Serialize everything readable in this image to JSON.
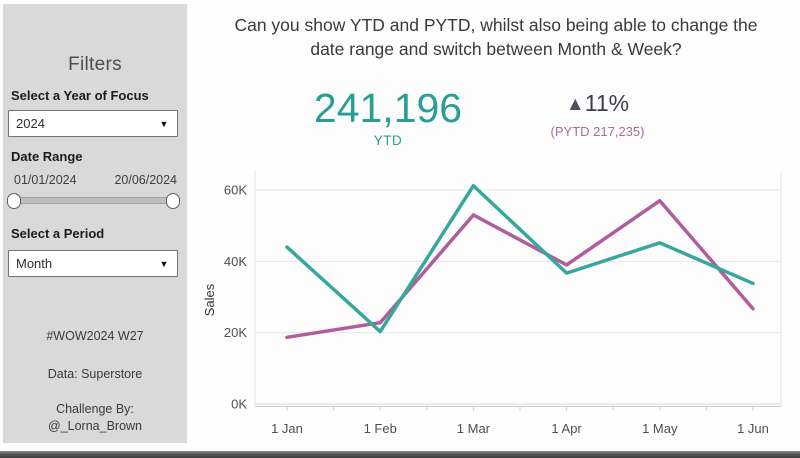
{
  "sidebar": {
    "title": "Filters",
    "year_filter": {
      "label": "Select a Year of Focus",
      "value": "2024"
    },
    "date_range": {
      "label": "Date Range",
      "start": "01/01/2024",
      "end": "20/06/2024"
    },
    "period_filter": {
      "label": "Select a Period",
      "value": "Month"
    },
    "footer": {
      "hashtag": "#WOW2024 W27",
      "data_source": "Data: Superstore",
      "challenge_by": "Challenge By:",
      "author": "@_Lorna_Brown"
    }
  },
  "header": {
    "title_line1": "Can you show YTD and PYTD, whilst also being able to change the",
    "title_line2": "date range and switch between Month & Week?"
  },
  "kpi": {
    "ytd_value": "241,196",
    "ytd_label": "YTD",
    "delta_arrow": "▲",
    "delta_value": "11%",
    "pytd_text": "(PYTD 217,235)",
    "colors": {
      "ytd": "#2a9e95",
      "delta_text": "#3b4046",
      "delta_arrow": "#4d525a",
      "pytd": "#b1679f"
    }
  },
  "chart_data": {
    "type": "line",
    "x": [
      "1 Jan",
      "1 Feb",
      "1 Mar",
      "1 Apr",
      "1 May",
      "1 Jun"
    ],
    "series": [
      {
        "name": "YTD",
        "color": "#36a79c",
        "values": [
          44000,
          20300,
          61200,
          36700,
          45200,
          33800
        ]
      },
      {
        "name": "PYTD",
        "color": "#b05c9d",
        "values": [
          18700,
          22800,
          53000,
          39000,
          57000,
          26700
        ]
      }
    ],
    "ylabel": "Sales",
    "yticks": [
      "0K",
      "20K",
      "40K",
      "60K"
    ],
    "ytick_values": [
      0,
      20000,
      40000,
      60000
    ],
    "ylim": [
      0,
      65500
    ],
    "grid": true,
    "legend": "none"
  }
}
